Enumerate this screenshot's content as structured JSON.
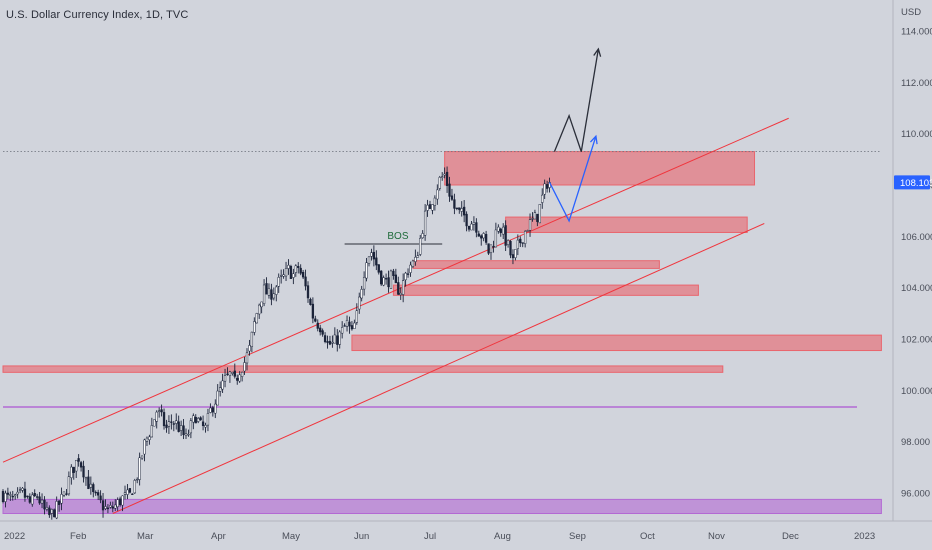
{
  "header": {
    "title": "U.S. Dollar Currency Index, 1D, TVC"
  },
  "colors": {
    "background": "#d1d4dc",
    "candle_up": "#ffffff",
    "candle_down": "#1a2238",
    "zone_red": "#e9656d",
    "zone_purple": "#b36ad3",
    "channel_line": "#f0353d",
    "projection_blue": "#2962ff",
    "projection_black": "#2a2e39",
    "price_tag": "#2962ff"
  },
  "chart_data": {
    "type": "candlestick",
    "currency_label": "USD",
    "last_price": "108.103",
    "y_ticks": [
      "114.000",
      "112.000",
      "110.000",
      "108.000",
      "106.000",
      "104.000",
      "102.000",
      "100.000",
      "98.000",
      "96.000"
    ],
    "x_ticks": [
      "2022",
      "Feb",
      "Mar",
      "Apr",
      "May",
      "Jun",
      "Jul",
      "Aug",
      "Sep",
      "Oct",
      "Nov",
      "Dec",
      "2023"
    ],
    "ylim": [
      94.8,
      116.0
    ],
    "annotation": "BOS",
    "path": [
      [
        0,
        96.0
      ],
      [
        3,
        95.8
      ],
      [
        6,
        95.7
      ],
      [
        9,
        96.0
      ],
      [
        12,
        95.6
      ],
      [
        15,
        95.9
      ],
      [
        18,
        95.3
      ],
      [
        20,
        95.1
      ],
      [
        23,
        95.4
      ],
      [
        26,
        95.9
      ],
      [
        29,
        96.8
      ],
      [
        32,
        97.4
      ],
      [
        35,
        96.6
      ],
      [
        38,
        95.9
      ],
      [
        41,
        95.6
      ],
      [
        44,
        95.3
      ],
      [
        47,
        95.5
      ],
      [
        50,
        95.8
      ],
      [
        53,
        95.9
      ],
      [
        56,
        96.7
      ],
      [
        59,
        97.9
      ],
      [
        62,
        98.6
      ],
      [
        64,
        99.2
      ],
      [
        66,
        98.9
      ],
      [
        68,
        98.5
      ],
      [
        70,
        98.8
      ],
      [
        72,
        98.7
      ],
      [
        74,
        98.4
      ],
      [
        76,
        98.1
      ],
      [
        78,
        98.6
      ],
      [
        80,
        99.0
      ],
      [
        82,
        98.6
      ],
      [
        84,
        98.5
      ],
      [
        86,
        99.2
      ],
      [
        88,
        99.6
      ],
      [
        90,
        100.0
      ],
      [
        92,
        100.4
      ],
      [
        94,
        100.6
      ],
      [
        96,
        100.3
      ],
      [
        98,
        100.8
      ],
      [
        100,
        101.1
      ],
      [
        102,
        101.6
      ],
      [
        104,
        102.6
      ],
      [
        106,
        103.4
      ],
      [
        108,
        103.9
      ],
      [
        110,
        103.7
      ],
      [
        112,
        103.9
      ],
      [
        114,
        104.2
      ],
      [
        116,
        104.4
      ],
      [
        118,
        104.7
      ],
      [
        120,
        104.5
      ],
      [
        122,
        104.8
      ],
      [
        124,
        104.3
      ],
      [
        126,
        103.7
      ],
      [
        128,
        102.9
      ],
      [
        130,
        102.6
      ],
      [
        132,
        102.4
      ],
      [
        134,
        101.8
      ],
      [
        136,
        101.8
      ],
      [
        138,
        102.0
      ],
      [
        140,
        102.3
      ],
      [
        142,
        102.6
      ],
      [
        144,
        102.2
      ],
      [
        146,
        102.9
      ],
      [
        148,
        104.1
      ],
      [
        150,
        105.2
      ],
      [
        152,
        105.4
      ],
      [
        154,
        104.9
      ],
      [
        156,
        104.4
      ],
      [
        158,
        104.2
      ],
      [
        160,
        104.4
      ],
      [
        162,
        104.0
      ],
      [
        164,
        103.9
      ],
      [
        166,
        104.5
      ],
      [
        168,
        104.9
      ],
      [
        170,
        105.0
      ],
      [
        172,
        105.9
      ],
      [
        174,
        106.8
      ],
      [
        176,
        107.2
      ],
      [
        178,
        107.7
      ],
      [
        180,
        108.2
      ],
      [
        182,
        108.4
      ],
      [
        184,
        107.7
      ],
      [
        186,
        107.1
      ],
      [
        188,
        106.9
      ],
      [
        190,
        106.8
      ],
      [
        192,
        106.5
      ],
      [
        194,
        106.6
      ],
      [
        196,
        106.2
      ],
      [
        198,
        105.9
      ],
      [
        200,
        105.4
      ],
      [
        202,
        105.8
      ],
      [
        204,
        106.5
      ],
      [
        206,
        106.1
      ],
      [
        208,
        105.6
      ],
      [
        210,
        105.0
      ],
      [
        212,
        105.6
      ],
      [
        214,
        106.0
      ],
      [
        216,
        106.4
      ],
      [
        218,
        106.6
      ],
      [
        220,
        106.8
      ],
      [
        222,
        107.5
      ],
      [
        224,
        108.1
      ]
    ],
    "channel_lines": [
      {
        "name": "upper-channel",
        "from": [
          0,
          97.2
        ],
        "to": [
          322,
          110.6
        ]
      },
      {
        "name": "lower-channel",
        "from": [
          45,
          95.2
        ],
        "to": [
          312,
          106.5
        ]
      }
    ],
    "zones": [
      {
        "name": "zone-red-1",
        "color": "red",
        "t1": 181,
        "t2": 308,
        "y1": 108.0,
        "y2": 109.3
      },
      {
        "name": "zone-red-2",
        "color": "red",
        "t1": 206,
        "t2": 305,
        "y1": 106.15,
        "y2": 106.75
      },
      {
        "name": "zone-red-3",
        "color": "red",
        "t1": 168,
        "t2": 269,
        "y1": 104.75,
        "y2": 105.05
      },
      {
        "name": "zone-red-4",
        "color": "red",
        "t1": 160,
        "t2": 285,
        "y1": 103.7,
        "y2": 104.1
      },
      {
        "name": "zone-red-5",
        "color": "red",
        "t1": 143,
        "t2": 360,
        "y1": 101.55,
        "y2": 102.15
      },
      {
        "name": "zone-red-6",
        "color": "red",
        "t1": 0,
        "t2": 295,
        "y1": 100.7,
        "y2": 100.95
      },
      {
        "name": "zone-purple-1",
        "color": "purple",
        "t1": 0,
        "t2": 360,
        "y1": 95.2,
        "y2": 95.75
      }
    ],
    "lines": [
      {
        "name": "purple-level-line",
        "t1": 0,
        "t2": 350,
        "y": 99.35
      },
      {
        "name": "bos-line",
        "t1": 140,
        "t2": 180,
        "y": 105.7
      },
      {
        "name": "dotted-level-line",
        "t1": 0,
        "t2": 360,
        "y": 109.3
      }
    ],
    "projections": [
      {
        "name": "blue-projection",
        "points": [
          [
            224,
            108.1
          ],
          [
            232,
            106.6
          ],
          [
            243,
            109.9
          ]
        ]
      },
      {
        "name": "black-projection",
        "points": [
          [
            226,
            109.3
          ],
          [
            232,
            110.7
          ],
          [
            237,
            109.3
          ],
          [
            244,
            113.3
          ]
        ]
      }
    ]
  }
}
